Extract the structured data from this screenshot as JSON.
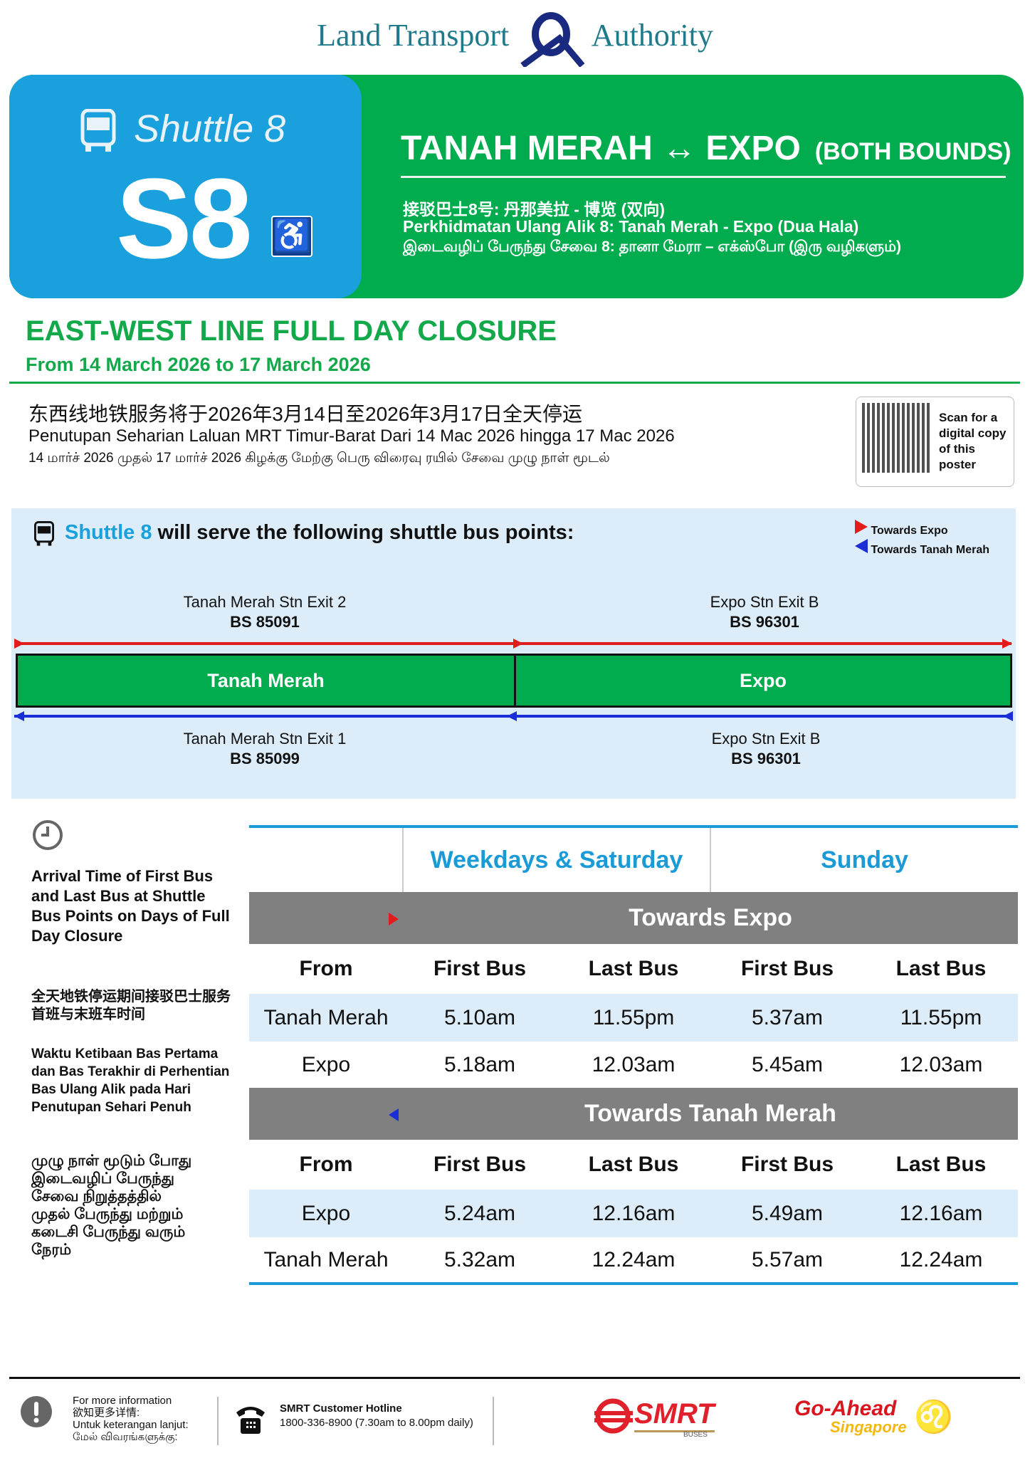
{
  "logo": {
    "left": "Land Transport",
    "right": "Authority"
  },
  "banner": {
    "shuttle_label": "Shuttle 8",
    "code": "S8",
    "route": "TANAH MERAH ↔ EXPO",
    "bounds": "(BOTH BOUNDS)",
    "chinese": "接驳巴士8号: 丹那美拉 - 博览 (双向)",
    "malay": "Perkhidmatan Ulang Alik 8: Tanah Merah - Expo (Dua Hala)",
    "tamil": "இடைவழிப் பேருந்து சேவை 8: தானா மேரா – எக்ஸ்போ (இரு வழிகளும்)"
  },
  "closure": {
    "title": "EAST-WEST LINE FULL DAY CLOSURE",
    "dates": "From 14 March 2026 to 17 March 2026",
    "chinese": "东西线地铁服务将于2026年3月14日至2026年3月17日全天停运",
    "malay": "Penutupan Seharian Laluan MRT Timur-Barat Dari 14 Mac 2026 hingga 17 Mac 2026",
    "tamil": "14 மார்ச் 2026 முதல் 17 மார்ச் 2026 கிழக்கு மேற்கு பெரு விரைவு ரயில் சேவை முழு நாள் மூடல்"
  },
  "qr": {
    "text": "Scan for a digital copy of this poster"
  },
  "points": {
    "title_highlight": "Shuttle 8",
    "title_rest": " will serve the following shuttle bus points:",
    "legend": [
      "Towards Expo",
      "Towards Tanah Merah"
    ],
    "top": [
      {
        "name": "Tanah Merah Stn Exit 2",
        "stop": "BS 85091"
      },
      {
        "name": "Expo Stn Exit B",
        "stop": "BS 96301"
      }
    ],
    "stations": [
      "Tanah Merah",
      "Expo"
    ],
    "bottom": [
      {
        "name": "Tanah Merah Stn Exit 1",
        "stop": "BS 85099"
      },
      {
        "name": "Expo Stn Exit B",
        "stop": "BS 96301"
      }
    ],
    "colors": {
      "towards_expo": "#e21b1b",
      "towards_tanah_merah": "#1a2ed8"
    }
  },
  "side": {
    "english": "Arrival Time of First Bus and Last Bus at Shuttle Bus Points on Days of Full Day Closure",
    "chinese": "全天地铁停运期间接驳巴士服务首班与末班车时间",
    "malay": "Waktu Ketibaan Bas Pertama dan Bas Terakhir di Perhentian Bas Ulang Alik pada Hari Penutupan Sehari Penuh",
    "tamil": "முழு நாள் மூடும் போது இடைவழிப் பேருந்து சேவை நிறுத்தத்தில் முதல் பேருந்து மற்றும் கடைசி பேருந்து வரும் நேரம்"
  },
  "schedule": {
    "day_headers": [
      "Weekdays & Saturday",
      "Sunday"
    ],
    "columns": [
      "From",
      "First Bus",
      "Last Bus",
      "First Bus",
      "Last Bus"
    ],
    "sections": [
      {
        "title": "Towards Expo",
        "rows": [
          [
            "Tanah Merah",
            "5.10am",
            "11.55pm",
            "5.37am",
            "11.55pm"
          ],
          [
            "Expo",
            "5.18am",
            "12.03am",
            "5.45am",
            "12.03am"
          ]
        ]
      },
      {
        "title": "Towards Tanah Merah",
        "rows": [
          [
            "Expo",
            "5.24am",
            "12.16am",
            "5.49am",
            "12.16am"
          ],
          [
            "Tanah Merah",
            "5.32am",
            "12.24am",
            "5.57am",
            "12.24am"
          ]
        ]
      }
    ]
  },
  "footer": {
    "info": [
      "For more information",
      "欲知更多详情:",
      "Untuk keterangan lanjut:",
      "மேல் விவரங்களுக்கு:"
    ],
    "hotline_title": "SMRT Customer Hotline",
    "hotline": "1800-336-8900 (7.30am to 8.00pm daily)",
    "smrt": "SMRT",
    "smrt_sub": "BUSES",
    "goahead": "Go-Ahead",
    "goahead_sub": "Singapore"
  }
}
